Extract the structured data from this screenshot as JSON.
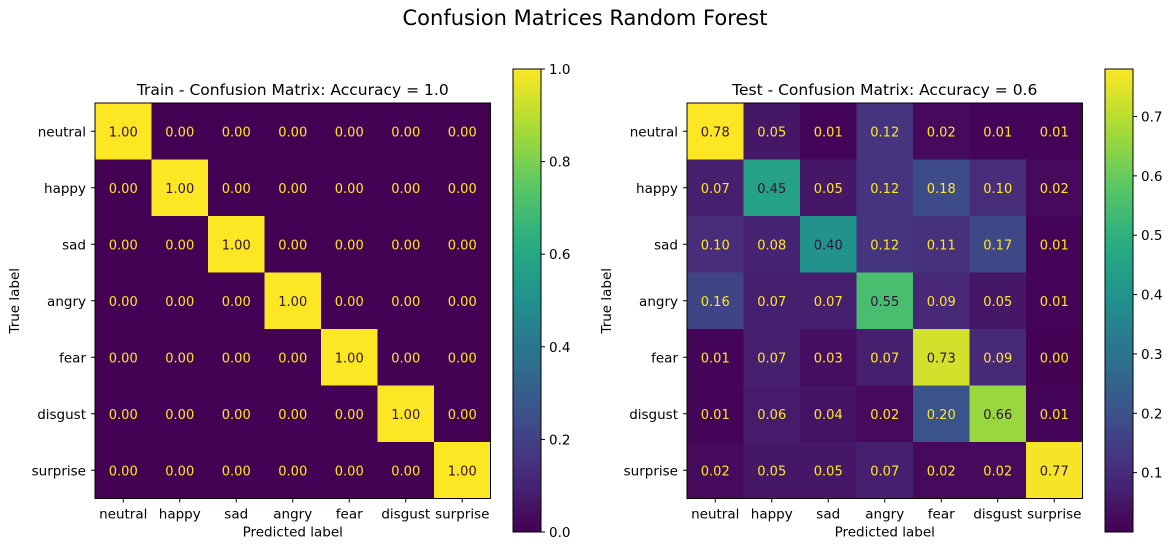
{
  "suptitle": "Confusion Matrices Random Forest",
  "chart_data": [
    {
      "type": "heatmap",
      "title": "Train - Confusion Matrix: Accuracy = 1.0",
      "xlabel": "Predicted label",
      "ylabel": "True label",
      "x_categories": [
        "neutral",
        "happy",
        "sad",
        "angry",
        "fear",
        "disgust",
        "surprise"
      ],
      "y_categories": [
        "neutral",
        "happy",
        "sad",
        "angry",
        "fear",
        "disgust",
        "surprise"
      ],
      "values": [
        [
          1.0,
          0.0,
          0.0,
          0.0,
          0.0,
          0.0,
          0.0
        ],
        [
          0.0,
          1.0,
          0.0,
          0.0,
          0.0,
          0.0,
          0.0
        ],
        [
          0.0,
          0.0,
          1.0,
          0.0,
          0.0,
          0.0,
          0.0
        ],
        [
          0.0,
          0.0,
          0.0,
          1.0,
          0.0,
          0.0,
          0.0
        ],
        [
          0.0,
          0.0,
          0.0,
          0.0,
          1.0,
          0.0,
          0.0
        ],
        [
          0.0,
          0.0,
          0.0,
          0.0,
          0.0,
          1.0,
          0.0
        ],
        [
          0.0,
          0.0,
          0.0,
          0.0,
          0.0,
          0.0,
          1.0
        ]
      ],
      "colormap": "viridis",
      "colorbar": {
        "range": [
          0.0,
          1.0
        ],
        "ticks": [
          0.0,
          0.2,
          0.4,
          0.6,
          0.8,
          1.0
        ],
        "tick_labels": [
          "0.0",
          "0.2",
          "0.4",
          "0.6",
          "0.8",
          "1.0"
        ]
      }
    },
    {
      "type": "heatmap",
      "title": "Test - Confusion Matrix: Accuracy = 0.6",
      "xlabel": "Predicted label",
      "ylabel": "True label",
      "x_categories": [
        "neutral",
        "happy",
        "sad",
        "angry",
        "fear",
        "disgust",
        "surprise"
      ],
      "y_categories": [
        "neutral",
        "happy",
        "sad",
        "angry",
        "fear",
        "disgust",
        "surprise"
      ],
      "values": [
        [
          0.78,
          0.05,
          0.01,
          0.12,
          0.02,
          0.01,
          0.01
        ],
        [
          0.07,
          0.45,
          0.05,
          0.12,
          0.18,
          0.1,
          0.02
        ],
        [
          0.1,
          0.08,
          0.4,
          0.12,
          0.11,
          0.17,
          0.01
        ],
        [
          0.16,
          0.07,
          0.07,
          0.55,
          0.09,
          0.05,
          0.01
        ],
        [
          0.01,
          0.07,
          0.03,
          0.07,
          0.73,
          0.09,
          0.0
        ],
        [
          0.01,
          0.06,
          0.04,
          0.02,
          0.2,
          0.66,
          0.01
        ],
        [
          0.02,
          0.05,
          0.05,
          0.07,
          0.02,
          0.02,
          0.77
        ]
      ],
      "colormap": "viridis",
      "colorbar": {
        "range": [
          0.0,
          0.78
        ],
        "ticks": [
          0.1,
          0.2,
          0.3,
          0.4,
          0.5,
          0.6,
          0.7
        ],
        "tick_labels": [
          "0.1",
          "0.2",
          "0.3",
          "0.4",
          "0.5",
          "0.6",
          "0.7"
        ]
      }
    }
  ]
}
